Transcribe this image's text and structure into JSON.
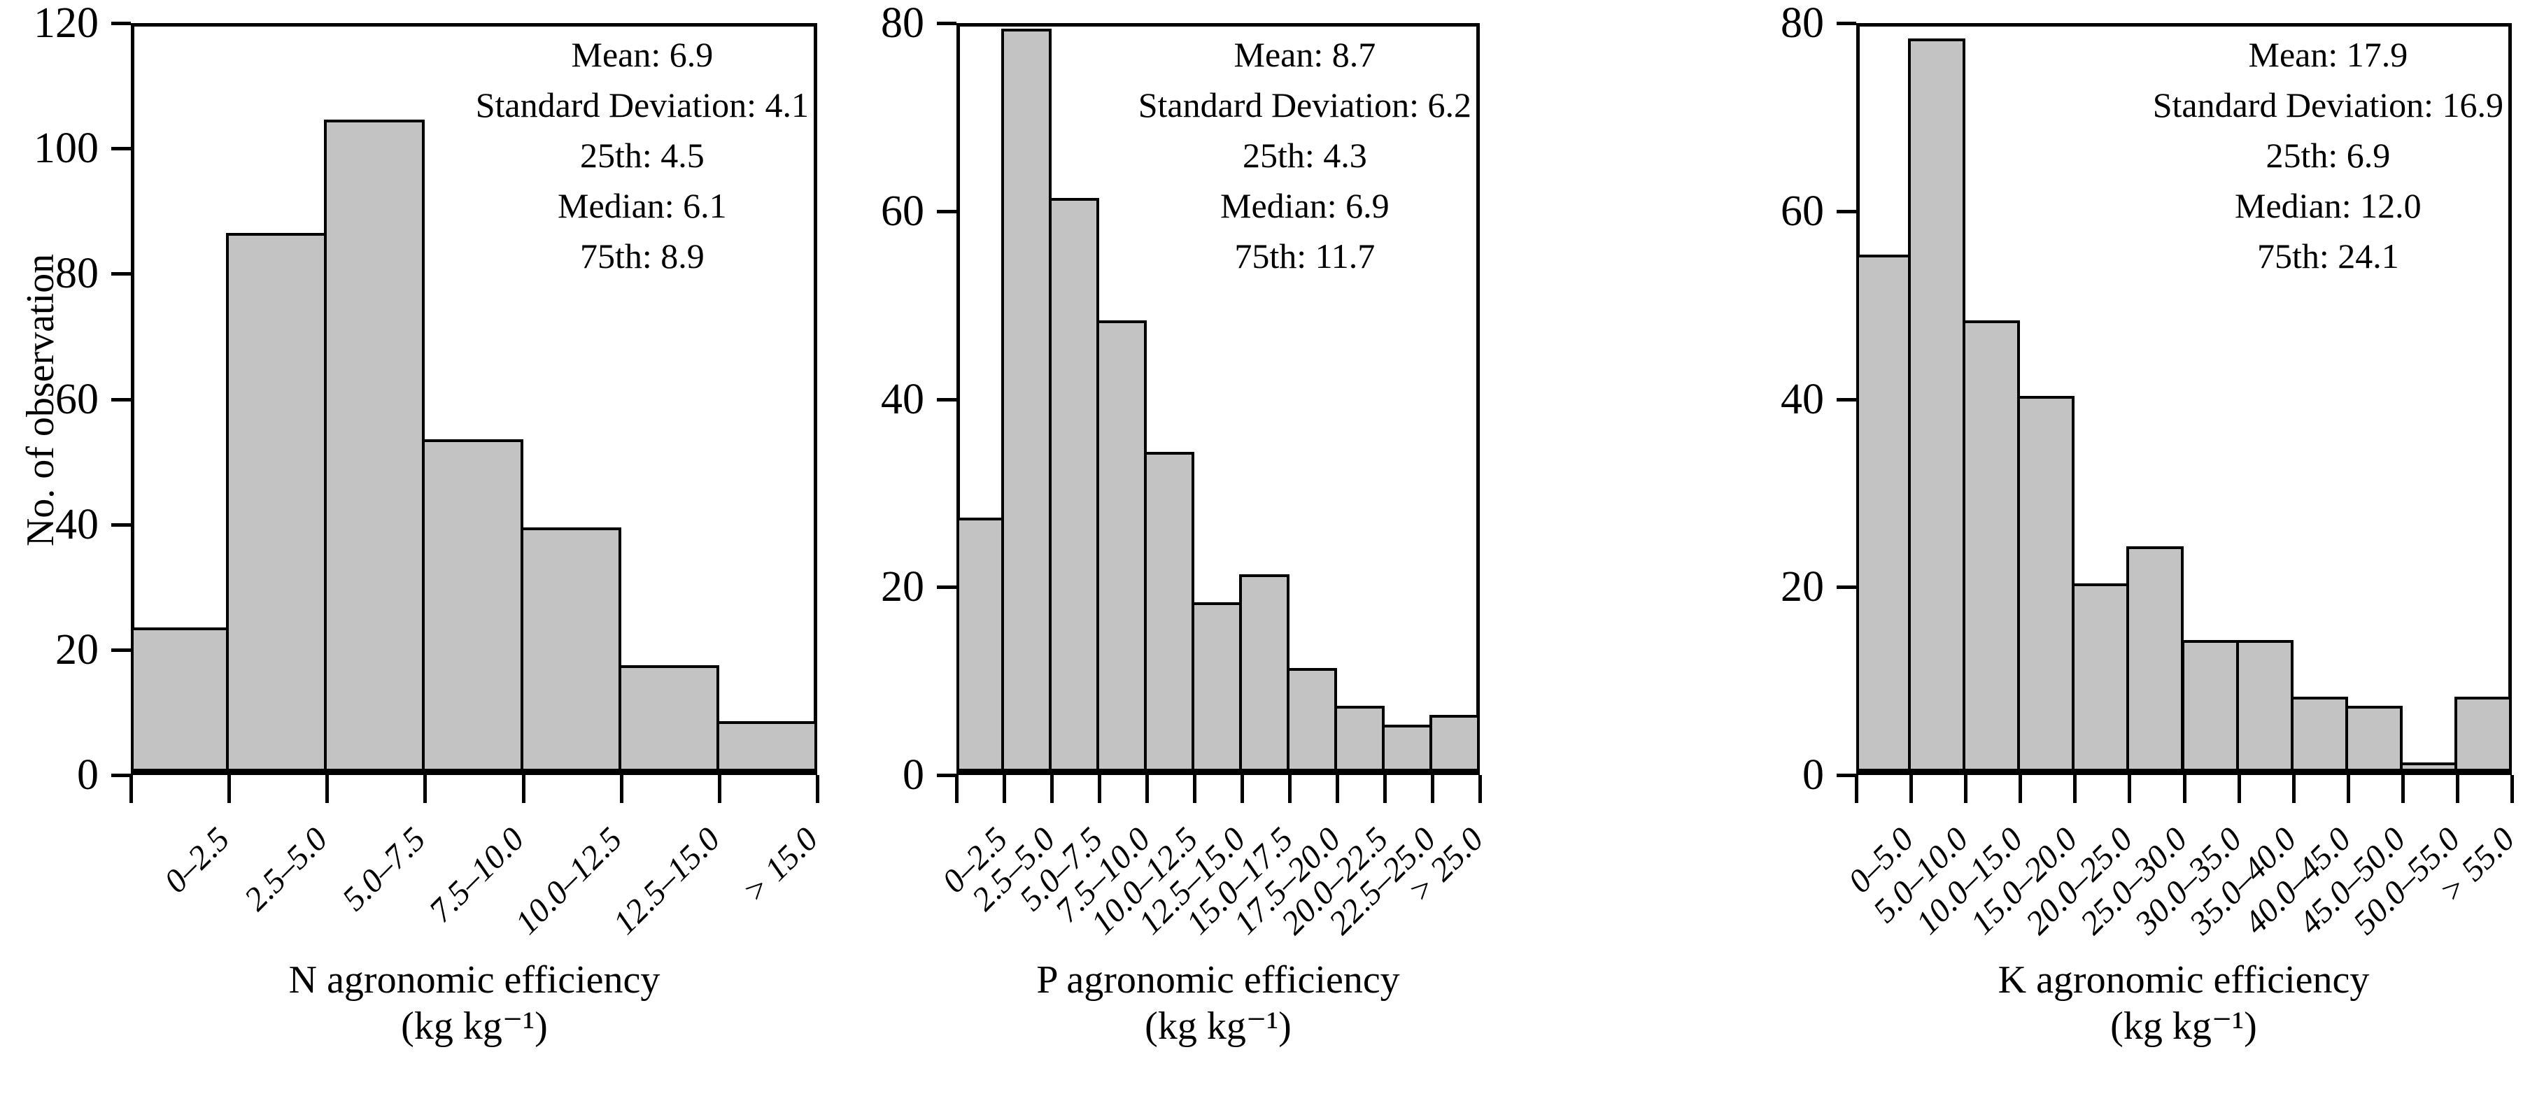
{
  "figure": {
    "bar_fill_color": "#c3c3c3",
    "bar_border_color": "#000000",
    "axis_color": "#000000",
    "background_color": "#ffffff"
  },
  "chart_data": [
    {
      "type": "bar",
      "title": "",
      "xlabel": "N agronomic efficiency (kg kg⁻¹)",
      "xlabel_lines": [
        "N agronomic efficiency",
        "(kg kg⁻¹)"
      ],
      "ylabel": "No. of observation",
      "categories": [
        "0–2.5",
        "2.5–5.0",
        "5.0–7.5",
        "7.5–10.0",
        "10.0–12.5",
        "12.5–15.0",
        "> 15.0"
      ],
      "values": [
        23,
        86,
        104,
        53,
        39,
        17,
        8
      ],
      "ylim": [
        0,
        120
      ],
      "ytick_step": 20,
      "grid": false,
      "annotations": [
        "Mean: 6.9",
        "Standard Deviation: 4.1",
        "25th: 4.5",
        "Median: 6.1",
        "75th: 8.9"
      ],
      "annotation_position": "top-right"
    },
    {
      "type": "bar",
      "title": "",
      "xlabel": "P agronomic efficiency (kg kg⁻¹)",
      "xlabel_lines": [
        "P agronomic efficiency",
        "(kg kg⁻¹)"
      ],
      "ylabel": "No. of observation",
      "categories": [
        "0–2.5",
        "2.5–5.0",
        "5.0–7.5",
        "7.5–10.0",
        "10.0–12.5",
        "12.5–15.0",
        "15.0–17.5",
        "17.5–20.0",
        "20.0–22.5",
        "22.5–25.0",
        "> 25.0"
      ],
      "values": [
        27,
        79,
        61,
        48,
        34,
        18,
        21,
        11,
        7,
        5,
        6
      ],
      "ylim": [
        0,
        80
      ],
      "ytick_step": 20,
      "grid": false,
      "annotations": [
        "Mean: 8.7",
        "Standard Deviation: 6.2",
        "25th: 4.3",
        "Median: 6.9",
        "75th: 11.7"
      ],
      "annotation_position": "top-right"
    },
    {
      "type": "bar",
      "title": "",
      "xlabel": "K agronomic efficiency (kg kg⁻¹)",
      "xlabel_lines": [
        "K agronomic efficiency",
        "(kg kg⁻¹)"
      ],
      "ylabel": "No. of observation",
      "categories": [
        "0–5.0",
        "5.0–10.0",
        "10.0–15.0",
        "15.0–20.0",
        "20.0–25.0",
        "25.0–30.0",
        "30.0–35.0",
        "35.0–40.0",
        "40.0–45.0",
        "45.0–50.0",
        "50.0–55.0",
        "> 55.0"
      ],
      "values": [
        55,
        78,
        48,
        40,
        20,
        24,
        14,
        14,
        8,
        7,
        1,
        8
      ],
      "ylim": [
        0,
        80
      ],
      "ytick_step": 20,
      "grid": false,
      "annotations": [
        "Mean: 17.9",
        "Standard Deviation: 16.9",
        "25th: 6.9",
        "Median: 12.0",
        "75th: 24.1"
      ],
      "annotation_position": "top-right"
    }
  ]
}
